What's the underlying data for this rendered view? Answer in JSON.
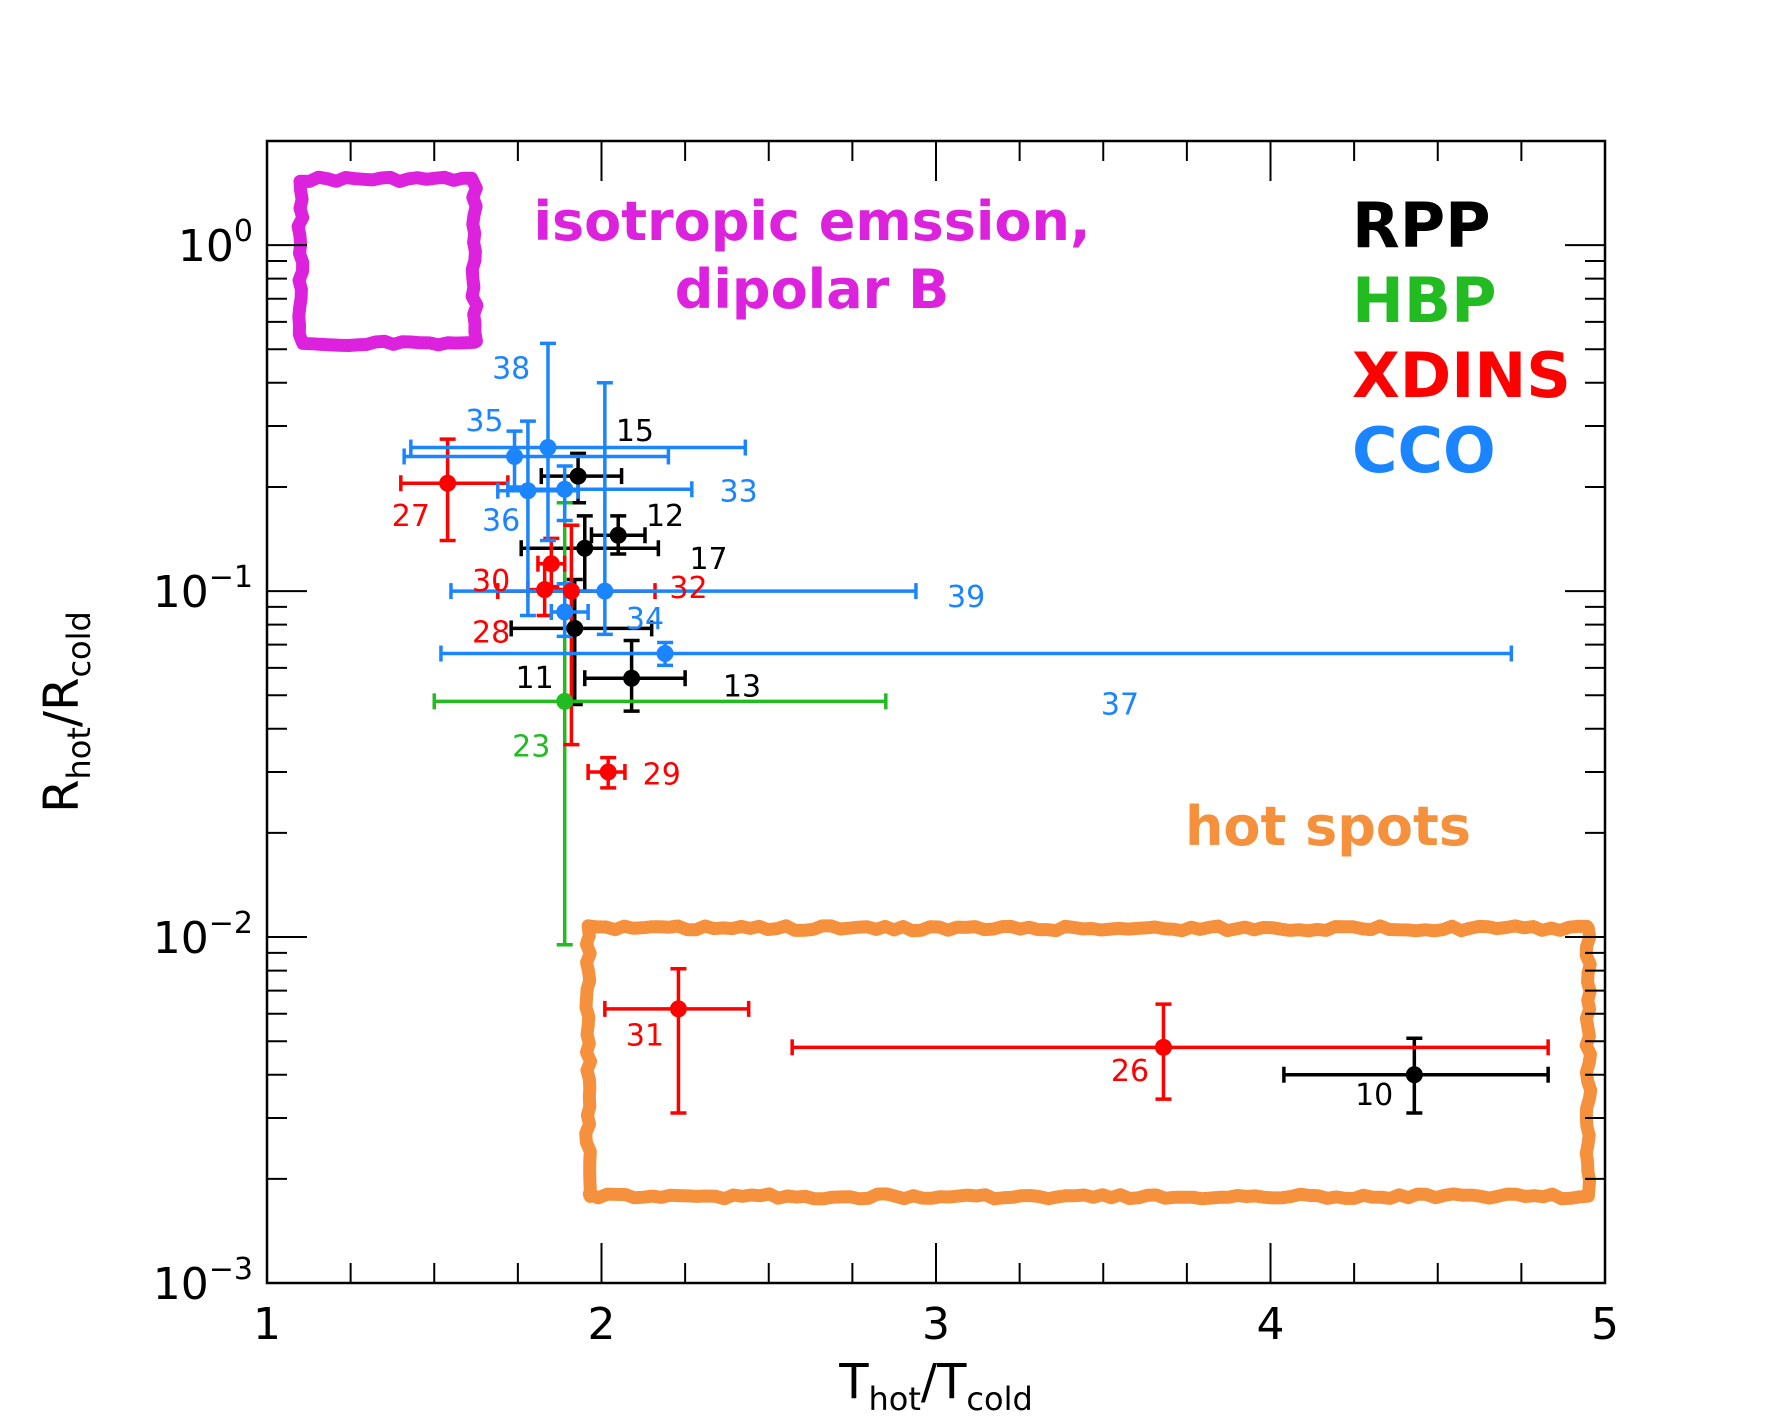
{
  "chart_data": {
    "type": "scatter",
    "x_scale": "linear",
    "y_scale": "log",
    "xlim": [
      1,
      5
    ],
    "ylim": [
      0.001,
      2
    ],
    "xlabel": {
      "main": "T",
      "sub1": "hot",
      "slash": "/T",
      "sub2": "cold"
    },
    "ylabel": {
      "main": "R",
      "sub1": "hot",
      "slash": "/R",
      "sub2": "cold"
    },
    "x_ticks": [
      {
        "value": 1,
        "label": "1"
      },
      {
        "value": 2,
        "label": "2"
      },
      {
        "value": 3,
        "label": "3"
      },
      {
        "value": 4,
        "label": "4"
      },
      {
        "value": 5,
        "label": "5"
      }
    ],
    "y_ticks": [
      {
        "value": 1,
        "base": "10",
        "exp": "0"
      },
      {
        "value": 0.1,
        "base": "10",
        "exp": "−1"
      },
      {
        "value": 0.01,
        "base": "10",
        "exp": "−2"
      },
      {
        "value": 0.001,
        "base": "10",
        "exp": "−3"
      }
    ],
    "legend": [
      {
        "name": "RPP",
        "color": "#000000"
      },
      {
        "name": "HBP",
        "color": "#22bb22"
      },
      {
        "name": "XDINS",
        "color": "#ff0000"
      },
      {
        "name": "CCO",
        "color": "#1a85ff"
      }
    ],
    "annotations": [
      {
        "id": "isotropic",
        "lines": [
          "isotropic emssion,",
          "dipolar B"
        ],
        "color": "#dd22dd",
        "region": {
          "x": [
            1.1,
            1.62
          ],
          "y": [
            0.52,
            1.55
          ]
        }
      },
      {
        "id": "hotspots",
        "lines": [
          "hot spots"
        ],
        "color": "#f5903c",
        "region": {
          "x": [
            1.96,
            4.95
          ],
          "y": [
            0.00178,
            0.0106
          ]
        }
      }
    ],
    "series": [
      {
        "name": "RPP",
        "color": "#000000",
        "points": [
          {
            "label": "10",
            "x": 4.43,
            "xerr": [
              4.04,
              4.83
            ],
            "y": 0.004,
            "yerr": [
              0.0031,
              0.0051
            ],
            "label_pos": [
              4.31,
              0.0035
            ]
          },
          {
            "label": "11",
            "x": 1.92,
            "xerr": [
              1.73,
              2.15
            ],
            "y": 0.078,
            "yerr": [
              0.047,
              0.108
            ],
            "label_pos": [
              1.8,
              0.056
            ]
          },
          {
            "label": "12",
            "x": 2.05,
            "xerr": [
              1.97,
              2.13
            ],
            "y": 0.145,
            "yerr": [
              0.128,
              0.165
            ],
            "label_pos": [
              2.19,
              0.165
            ]
          },
          {
            "label": "13",
            "x": 2.09,
            "xerr": [
              1.95,
              2.25
            ],
            "y": 0.056,
            "yerr": [
              0.045,
              0.072
            ],
            "label_pos": [
              2.42,
              0.053
            ]
          },
          {
            "label": "15",
            "x": 1.93,
            "xerr": [
              1.82,
              2.06
            ],
            "y": 0.215,
            "yerr": [
              0.18,
              0.25
            ],
            "label_pos": [
              2.1,
              0.29
            ]
          },
          {
            "label": "17",
            "x": 1.95,
            "xerr": [
              1.76,
              2.17
            ],
            "y": 0.133,
            "yerr": [
              0.1,
              0.165
            ],
            "label_pos": [
              2.32,
              0.124
            ]
          }
        ]
      },
      {
        "name": "HBP",
        "color": "#22bb22",
        "points": [
          {
            "label": "23",
            "x": 1.89,
            "xerr": [
              1.5,
              2.85
            ],
            "y": 0.048,
            "yerr": [
              0.0095,
              0.18
            ],
            "label_pos": [
              1.79,
              0.0355
            ]
          }
        ]
      },
      {
        "name": "XDINS",
        "color": "#ff0000",
        "points": [
          {
            "label": "26",
            "x": 3.68,
            "xerr": [
              2.57,
              4.83
            ],
            "y": 0.0048,
            "yerr": [
              0.0034,
              0.0064
            ],
            "label_pos": [
              3.58,
              0.0041
            ]
          },
          {
            "label": "27",
            "x": 1.54,
            "xerr": [
              1.4,
              1.72
            ],
            "y": 0.205,
            "yerr": [
              0.14,
              0.275
            ],
            "label_pos": [
              1.43,
              0.165
            ]
          },
          {
            "label": "28",
            "x": 1.83,
            "xerr": [
              1.78,
              1.89
            ],
            "y": 0.101,
            "yerr": [
              0.085,
              0.12
            ],
            "label_pos": [
              1.67,
              0.076
            ]
          },
          {
            "label": "29",
            "x": 2.02,
            "xerr": [
              1.96,
              2.07
            ],
            "y": 0.03,
            "yerr": [
              0.027,
              0.033
            ],
            "label_pos": [
              2.18,
              0.0295
            ]
          },
          {
            "label": "30",
            "x": 1.85,
            "xerr": [
              1.81,
              1.89
            ],
            "y": 0.12,
            "yerr": [
              0.103,
              0.142
            ],
            "label_pos": [
              1.67,
              0.107
            ]
          },
          {
            "label": "31",
            "x": 2.23,
            "xerr": [
              2.01,
              2.44
            ],
            "y": 0.0062,
            "yerr": [
              0.0031,
              0.0081
            ],
            "label_pos": [
              2.13,
              0.0052
            ]
          },
          {
            "label": "32",
            "x": 1.91,
            "xerr": [
              1.69,
              2.16
            ],
            "y": 0.1,
            "yerr": [
              0.036,
              0.155
            ],
            "label_pos": [
              2.26,
              0.102
            ]
          }
        ]
      },
      {
        "name": "CCO",
        "color": "#1a85ff",
        "points": [
          {
            "label": "33",
            "x": 1.89,
            "xerr": [
              1.72,
              2.27
            ],
            "y": 0.197,
            "yerr": [
              0.16,
              0.23
            ],
            "label_pos": [
              2.41,
              0.194
            ]
          },
          {
            "label": "34",
            "x": 1.89,
            "xerr": [
              1.85,
              1.96
            ],
            "y": 0.087,
            "yerr": [
              0.074,
              0.105
            ],
            "label_pos": [
              2.13,
              0.083
            ]
          },
          {
            "label": "35",
            "x": 1.74,
            "xerr": [
              1.41,
              2.2
            ],
            "y": 0.245,
            "yerr": [
              0.2,
              0.29
            ],
            "label_pos": [
              1.65,
              0.31
            ]
          },
          {
            "label": "36",
            "x": 1.78,
            "xerr": [
              1.69,
              1.93
            ],
            "y": 0.195,
            "yerr": [
              0.085,
              0.31
            ],
            "label_pos": [
              1.7,
              0.16
            ]
          },
          {
            "label": "37",
            "x": 2.19,
            "xerr": [
              1.52,
              4.72
            ],
            "y": 0.066,
            "yerr": [
              0.061,
              0.071
            ],
            "label_pos": [
              3.55,
              0.047
            ]
          },
          {
            "label": "38",
            "x": 1.84,
            "xerr": [
              1.43,
              2.43
            ],
            "y": 0.26,
            "yerr": [
              0.14,
              0.52
            ],
            "label_pos": [
              1.73,
              0.44
            ]
          },
          {
            "label": "39",
            "x": 2.01,
            "xerr": [
              1.55,
              2.94
            ],
            "y": 0.1,
            "yerr": [
              0.075,
              0.4
            ],
            "label_pos": [
              3.09,
              0.096
            ]
          }
        ]
      }
    ]
  }
}
